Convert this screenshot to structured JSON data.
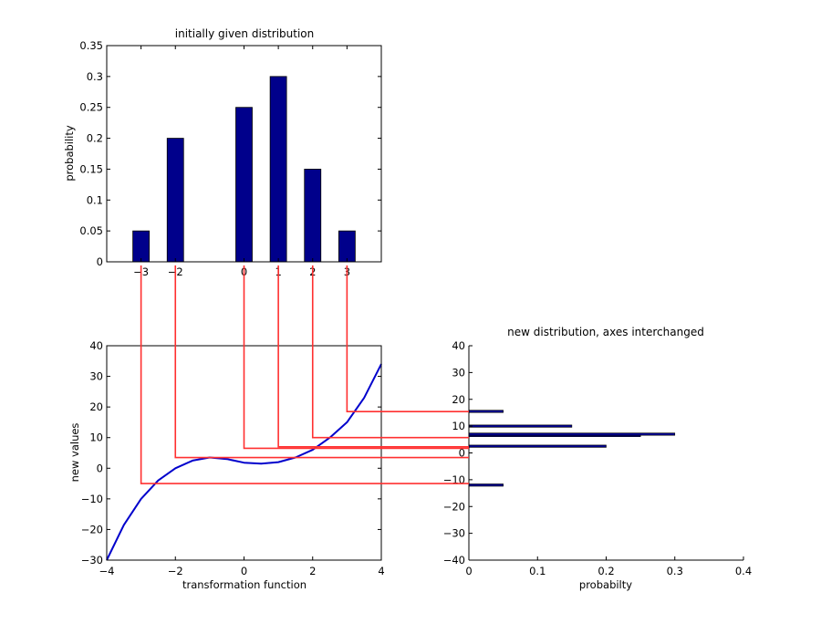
{
  "colors": {
    "bar": "#00008B",
    "curve": "#0000CC",
    "mapping": "#FF3030",
    "axis": "#000000"
  },
  "chart_data": [
    {
      "type": "bar",
      "title": "initially given distribution",
      "xlabel": "",
      "ylabel": "probability",
      "x": [
        -3,
        -2,
        0,
        1,
        2,
        3
      ],
      "values": [
        0.05,
        0.2,
        0.25,
        0.3,
        0.15,
        0.05
      ],
      "xticks": [
        "−3",
        "−2",
        "0",
        "1",
        "2",
        "3"
      ],
      "xlim": [
        -4,
        4
      ],
      "ylim": [
        0,
        0.35
      ],
      "yticks": [
        "0",
        "0.05",
        "0.1",
        "0.15",
        "0.2",
        "0.25",
        "0.3",
        "0.35"
      ]
    },
    {
      "type": "line",
      "title": "",
      "xlabel": "transformation function",
      "ylabel": "new values",
      "x": [
        -4,
        -3.5,
        -3,
        -2.5,
        -2,
        -1.5,
        -1,
        -0.5,
        0,
        0.5,
        1,
        1.5,
        2,
        2.5,
        3,
        3.5,
        4
      ],
      "y": [
        -30,
        -18.5,
        -10,
        -4,
        0,
        2.5,
        3.5,
        3,
        1.8,
        1.5,
        2,
        3.5,
        6,
        10,
        15,
        23,
        34
      ],
      "xlim": [
        -4,
        4
      ],
      "ylim": [
        -30,
        40
      ],
      "xticks": [
        "−4",
        "−2",
        "0",
        "2",
        "4"
      ],
      "yticks": [
        "−30",
        "−20",
        "−10",
        "0",
        "10",
        "20",
        "30",
        "40"
      ]
    },
    {
      "type": "bar",
      "orientation": "horizontal",
      "title": "new distribution, axes interchanged",
      "xlabel": "probabilty",
      "ylabel": "",
      "y": [
        -12,
        2.5,
        6.5,
        7,
        10,
        15.5
      ],
      "values": [
        0.05,
        0.2,
        0.25,
        0.3,
        0.15,
        0.05
      ],
      "xlim": [
        0,
        0.4
      ],
      "ylim": [
        -40,
        40
      ],
      "xticks": [
        "0",
        "0.1",
        "0.2",
        "0.3",
        "0.4"
      ],
      "yticks": [
        "−40",
        "−30",
        "−20",
        "−10",
        "0",
        "10",
        "20",
        "30",
        "40"
      ]
    },
    {
      "type": "mapping_lines",
      "x": [
        -3,
        -2,
        0,
        1,
        2,
        3
      ],
      "y": [
        -5,
        3.5,
        6.5,
        7,
        10,
        18.5
      ]
    }
  ]
}
